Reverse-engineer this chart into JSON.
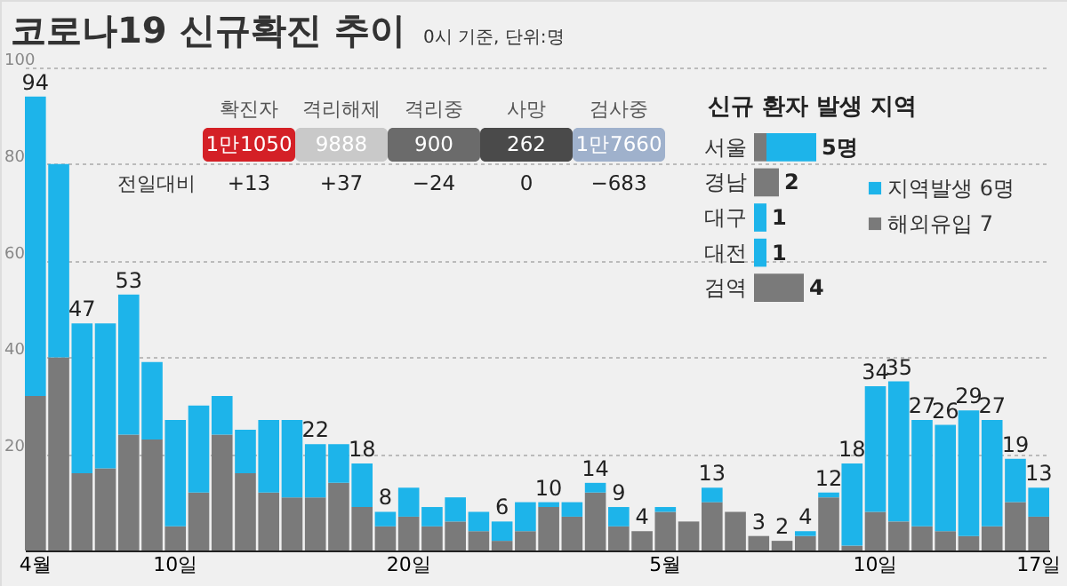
{
  "chart_data": [
    {
      "type": "bar",
      "title": "코로나19 신규확진 추이",
      "subtitle": "0시 기준, 단위:명",
      "stacked": true,
      "categories": [
        "4월",
        null,
        null,
        null,
        null,
        null,
        "10일",
        null,
        null,
        null,
        null,
        null,
        null,
        null,
        null,
        null,
        "20일",
        null,
        null,
        null,
        null,
        null,
        null,
        null,
        null,
        null,
        null,
        "5월",
        null,
        null,
        null,
        null,
        null,
        null,
        null,
        null,
        "10일",
        null,
        null,
        null,
        null,
        null,
        null,
        "17일"
      ],
      "series": [
        {
          "color": "#7a7a7a",
          "values": [
            32,
            40,
            16,
            17,
            24,
            23,
            5,
            12,
            24,
            16,
            12,
            11,
            11,
            14,
            9,
            5,
            7,
            5,
            6,
            4,
            2,
            4,
            9,
            7,
            12,
            5,
            4,
            8,
            6,
            10,
            8,
            3,
            2,
            3,
            11,
            1,
            8,
            6,
            5,
            4,
            3,
            5,
            10,
            7
          ]
        },
        {
          "color": "#1db4ea",
          "values": [
            62,
            40,
            31,
            30,
            29,
            16,
            22,
            18,
            8,
            9,
            15,
            16,
            11,
            8,
            9,
            3,
            6,
            4,
            5,
            4,
            4,
            6,
            1,
            3,
            2,
            4,
            0,
            1,
            0,
            3,
            0,
            0,
            0,
            1,
            1,
            17,
            26,
            29,
            22,
            22,
            26,
            22,
            9,
            6
          ]
        }
      ],
      "totals": [
        "94",
        null,
        "47",
        null,
        "53",
        null,
        null,
        null,
        null,
        null,
        null,
        null,
        "22",
        null,
        "18",
        "8",
        null,
        null,
        null,
        null,
        "6",
        null,
        "10",
        null,
        "14",
        "9",
        "4",
        null,
        null,
        "13",
        null,
        "3",
        "2",
        "4",
        "12",
        "18",
        "34",
        "35",
        "27",
        "26",
        "29",
        "27",
        "19",
        "13"
      ],
      "ylim": [
        0,
        100
      ],
      "yticks": [
        20,
        40,
        60,
        80,
        100
      ],
      "grid": "y"
    },
    {
      "type": "bar",
      "title": "신규 환자 발생 지역",
      "orientation": "horizontal",
      "stacked": true,
      "categories": [
        "서울",
        "경남",
        "대구",
        "대전",
        "검역"
      ],
      "series": [
        {
          "name": "해외유입 7",
          "color": "#7a7a7a",
          "values": [
            1,
            2,
            0,
            0,
            4
          ],
          "value_labels": [
            null,
            "2",
            null,
            null,
            "4"
          ]
        },
        {
          "name": "지역발생 6명",
          "color": "#1db4ea",
          "values": [
            4,
            0,
            1,
            1,
            0
          ],
          "value_labels": [
            null,
            null,
            "1",
            "1",
            null
          ]
        }
      ],
      "totals": [
        "5명",
        null,
        null,
        null,
        null
      ],
      "legend": "right"
    },
    {
      "type": "other",
      "categories": [
        "확진자",
        "격리해제",
        "격리중",
        "사망",
        "검사중"
      ],
      "y_categories": [
        null,
        "전일대비"
      ],
      "cell_labels": [
        [
          "1만1050",
          "9888",
          "900",
          "262",
          "1만7660"
        ],
        [
          "+13",
          "+37",
          "−24",
          "0",
          "−683"
        ]
      ],
      "colors": [
        "#d42026",
        "#c9c9c9",
        "#6b6b6b",
        "#4a4a4a",
        "#9fb1cc"
      ]
    }
  ]
}
